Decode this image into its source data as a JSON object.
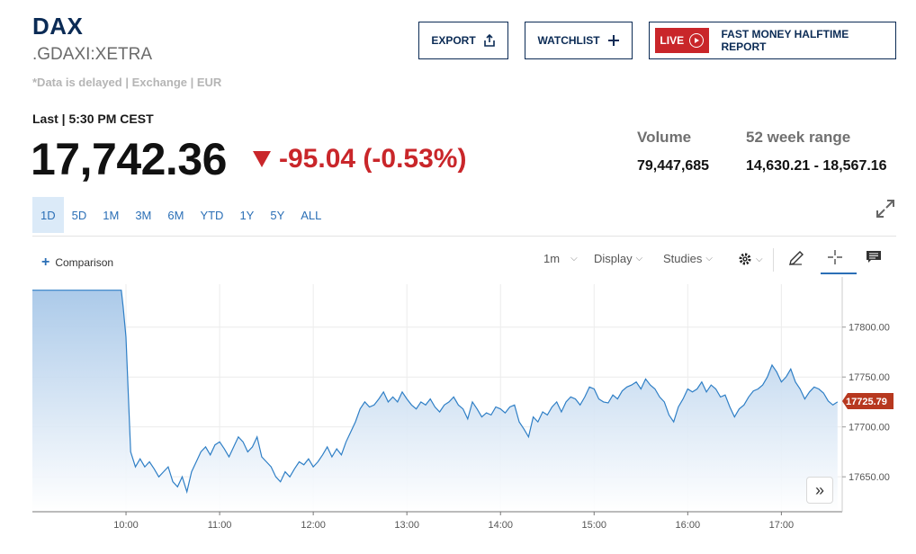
{
  "header": {
    "symbol": "DAX",
    "exchange_symbol": ".GDAXI:XETRA",
    "delayed_note": "*Data is delayed | Exchange | EUR"
  },
  "actions": {
    "export_label": "EXPORT",
    "watchlist_label": "WATCHLIST",
    "live_label": "LIVE",
    "live_show": "FAST MONEY HALFTIME REPORT"
  },
  "quote": {
    "last_label": "Last | 5:30 PM CEST",
    "price": "17,742.36",
    "change": "-95.04 (-0.53%)",
    "direction": "down",
    "change_color": "#c9262a"
  },
  "stats": {
    "volume_label": "Volume",
    "volume_value": "79,447,685",
    "range_label": "52 week range",
    "range_value": "14,630.21 - 18,567.16"
  },
  "time_ranges": [
    "1D",
    "5D",
    "1M",
    "3M",
    "6M",
    "YTD",
    "1Y",
    "5Y",
    "ALL"
  ],
  "active_range": "1D",
  "chart_toolbar": {
    "comparison_label": "Comparison",
    "interval_label": "1m",
    "display_label": "Display",
    "studies_label": "Studies"
  },
  "colors": {
    "brand_navy": "#0b2b55",
    "accent_blue": "#2b6fb6",
    "line": "#2f7fc6",
    "down_red": "#c9262a",
    "price_tag": "#b7381f"
  },
  "chart_data": {
    "type": "area",
    "x_ticks": [
      "10:00",
      "11:00",
      "12:00",
      "13:00",
      "14:00",
      "15:00",
      "16:00",
      "17:00"
    ],
    "y_ticks": [
      17650,
      17700,
      17750,
      17800
    ],
    "ylim": [
      17615,
      17843
    ],
    "xlim": [
      9.0,
      17.65
    ],
    "current_value": "17725.79",
    "x": [
      9.0,
      9.95,
      9.97,
      10.0,
      10.05,
      10.1,
      10.15,
      10.2,
      10.25,
      10.3,
      10.35,
      10.4,
      10.45,
      10.5,
      10.55,
      10.6,
      10.65,
      10.7,
      10.75,
      10.8,
      10.85,
      10.9,
      10.95,
      11.0,
      11.05,
      11.1,
      11.15,
      11.2,
      11.25,
      11.3,
      11.35,
      11.4,
      11.45,
      11.5,
      11.55,
      11.6,
      11.65,
      11.7,
      11.75,
      11.8,
      11.85,
      11.9,
      11.95,
      12.0,
      12.05,
      12.1,
      12.15,
      12.2,
      12.25,
      12.3,
      12.35,
      12.4,
      12.45,
      12.5,
      12.55,
      12.6,
      12.65,
      12.7,
      12.75,
      12.8,
      12.85,
      12.9,
      12.95,
      13.0,
      13.05,
      13.1,
      13.15,
      13.2,
      13.25,
      13.3,
      13.35,
      13.4,
      13.45,
      13.5,
      13.55,
      13.6,
      13.65,
      13.7,
      13.75,
      13.8,
      13.85,
      13.9,
      13.95,
      14.0,
      14.05,
      14.1,
      14.15,
      14.2,
      14.25,
      14.3,
      14.35,
      14.4,
      14.45,
      14.5,
      14.55,
      14.6,
      14.65,
      14.7,
      14.75,
      14.8,
      14.85,
      14.9,
      14.95,
      15.0,
      15.05,
      15.1,
      15.15,
      15.2,
      15.25,
      15.3,
      15.35,
      15.4,
      15.45,
      15.5,
      15.55,
      15.6,
      15.65,
      15.7,
      15.75,
      15.8,
      15.85,
      15.9,
      15.95,
      16.0,
      16.05,
      16.1,
      16.15,
      16.2,
      16.25,
      16.3,
      16.35,
      16.4,
      16.45,
      16.5,
      16.55,
      16.6,
      16.65,
      16.7,
      16.75,
      16.8,
      16.85,
      16.9,
      16.95,
      17.0,
      17.05,
      17.1,
      17.15,
      17.2,
      17.25,
      17.3,
      17.35,
      17.4,
      17.45,
      17.5,
      17.55,
      17.6
    ],
    "y": [
      17837,
      17837,
      17820,
      17790,
      17675,
      17660,
      17668,
      17660,
      17665,
      17658,
      17650,
      17655,
      17660,
      17645,
      17640,
      17650,
      17635,
      17655,
      17665,
      17675,
      17680,
      17672,
      17682,
      17685,
      17678,
      17670,
      17680,
      17690,
      17685,
      17675,
      17680,
      17690,
      17670,
      17665,
      17660,
      17650,
      17645,
      17655,
      17650,
      17658,
      17665,
      17662,
      17668,
      17660,
      17665,
      17672,
      17680,
      17670,
      17678,
      17672,
      17685,
      17695,
      17705,
      17718,
      17725,
      17720,
      17722,
      17728,
      17735,
      17725,
      17730,
      17725,
      17735,
      17728,
      17722,
      17718,
      17725,
      17722,
      17728,
      17720,
      17715,
      17722,
      17725,
      17730,
      17722,
      17718,
      17708,
      17725,
      17718,
      17710,
      17714,
      17712,
      17720,
      17718,
      17714,
      17720,
      17722,
      17705,
      17698,
      17690,
      17710,
      17705,
      17715,
      17712,
      17720,
      17725,
      17715,
      17725,
      17730,
      17728,
      17722,
      17730,
      17740,
      17738,
      17728,
      17725,
      17724,
      17732,
      17728,
      17736,
      17740,
      17742,
      17745,
      17738,
      17748,
      17742,
      17738,
      17730,
      17725,
      17712,
      17705,
      17720,
      17728,
      17738,
      17735,
      17738,
      17745,
      17735,
      17742,
      17738,
      17730,
      17732,
      17720,
      17710,
      17718,
      17722,
      17730,
      17736,
      17738,
      17742,
      17750,
      17762,
      17755,
      17745,
      17750,
      17758,
      17745,
      17738,
      17728,
      17735,
      17740,
      17738,
      17734,
      17726,
      17722,
      17725
    ]
  }
}
